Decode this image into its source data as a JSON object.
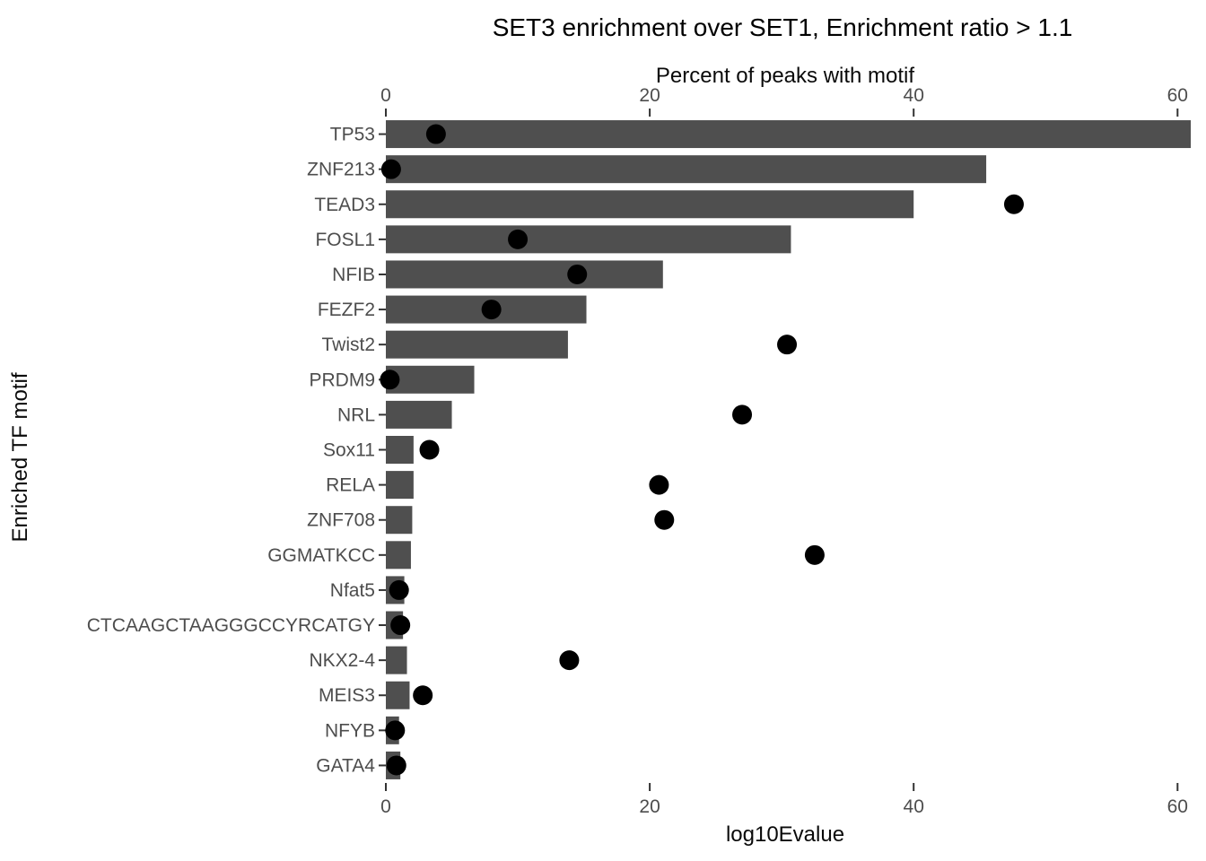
{
  "chart_data": {
    "type": "bar",
    "orientation": "horizontal",
    "title": "SET3 enrichment over SET1, Enrichment ratio > 1.1",
    "top_axis_label": "Percent of peaks with motif",
    "bottom_axis_label": "log10Evalue",
    "ylabel": "Enriched TF motif",
    "categories": [
      "TP53",
      "ZNF213",
      "TEAD3",
      "FOSL1",
      "NFIB",
      "FEZF2",
      "Twist2",
      "PRDM9",
      "NRL",
      "Sox11",
      "RELA",
      "ZNF708",
      "GGMATKCC",
      "Nfat5",
      "CTCAAGCTAAGGGCCYRCATGY",
      "NKX2-4",
      "MEIS3",
      "NFYB",
      "GATA4"
    ],
    "series": [
      {
        "name": "Percent of peaks with motif",
        "type": "bar",
        "values": [
          61,
          45.5,
          40,
          30.7,
          21,
          15.2,
          13.8,
          6.7,
          5.0,
          2.1,
          2.1,
          2.0,
          1.9,
          1.4,
          1.3,
          1.6,
          1.8,
          1.0,
          1.1
        ]
      },
      {
        "name": "log10Evalue",
        "type": "point",
        "values": [
          3.8,
          0.4,
          47.6,
          10.0,
          14.5,
          8.0,
          30.4,
          0.3,
          27.0,
          3.3,
          20.7,
          21.1,
          32.5,
          1.0,
          1.1,
          13.9,
          2.8,
          0.7,
          0.8
        ]
      }
    ],
    "x_ticks": [
      0,
      20,
      40,
      60
    ],
    "xlim": [
      0,
      61
    ],
    "grid": "off",
    "legend": "none",
    "bar_color": "#4f4f4f",
    "point_color": "#000000",
    "tick_color": "#333333",
    "axis_text_color": "#4d4d4d"
  }
}
